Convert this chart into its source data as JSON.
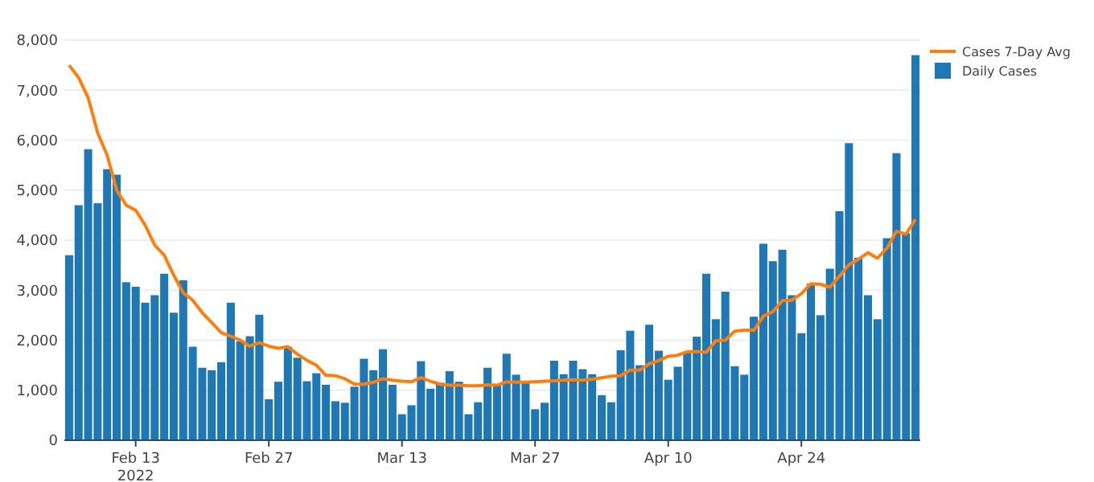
{
  "chart_data": {
    "type": "bar",
    "x": [
      "2022-02-06",
      "2022-02-07",
      "2022-02-08",
      "2022-02-09",
      "2022-02-10",
      "2022-02-11",
      "2022-02-12",
      "2022-02-13",
      "2022-02-14",
      "2022-02-15",
      "2022-02-16",
      "2022-02-17",
      "2022-02-18",
      "2022-02-19",
      "2022-02-20",
      "2022-02-21",
      "2022-02-22",
      "2022-02-23",
      "2022-02-24",
      "2022-02-25",
      "2022-02-26",
      "2022-02-27",
      "2022-02-28",
      "2022-03-01",
      "2022-03-02",
      "2022-03-03",
      "2022-03-04",
      "2022-03-05",
      "2022-03-06",
      "2022-03-07",
      "2022-03-08",
      "2022-03-09",
      "2022-03-10",
      "2022-03-11",
      "2022-03-12",
      "2022-03-13",
      "2022-03-14",
      "2022-03-15",
      "2022-03-16",
      "2022-03-17",
      "2022-03-18",
      "2022-03-19",
      "2022-03-20",
      "2022-03-21",
      "2022-03-22",
      "2022-03-23",
      "2022-03-24",
      "2022-03-25",
      "2022-03-26",
      "2022-03-27",
      "2022-03-28",
      "2022-03-29",
      "2022-03-30",
      "2022-03-31",
      "2022-04-01",
      "2022-04-02",
      "2022-04-03",
      "2022-04-04",
      "2022-04-05",
      "2022-04-06",
      "2022-04-07",
      "2022-04-08",
      "2022-04-09",
      "2022-04-10",
      "2022-04-11",
      "2022-04-12",
      "2022-04-13",
      "2022-04-14",
      "2022-04-15",
      "2022-04-16",
      "2022-04-17",
      "2022-04-18",
      "2022-04-19",
      "2022-04-20",
      "2022-04-21",
      "2022-04-22",
      "2022-04-23",
      "2022-04-24",
      "2022-04-25",
      "2022-04-26",
      "2022-04-27",
      "2022-04-28",
      "2022-04-29",
      "2022-04-30",
      "2022-05-01",
      "2022-05-02",
      "2022-05-03",
      "2022-05-04",
      "2022-05-05",
      "2022-05-06"
    ],
    "series": [
      {
        "name": "Cases 7-Day Avg",
        "type": "line",
        "color": "#ff7f0e",
        "values": [
          7500,
          7250,
          6850,
          6150,
          5700,
          5000,
          4700,
          4600,
          4300,
          3900,
          3700,
          3300,
          2950,
          2800,
          2550,
          2350,
          2150,
          2080,
          2000,
          1880,
          1950,
          1880,
          1840,
          1870,
          1720,
          1600,
          1500,
          1300,
          1290,
          1230,
          1120,
          1120,
          1160,
          1230,
          1200,
          1180,
          1170,
          1250,
          1180,
          1120,
          1100,
          1100,
          1090,
          1090,
          1110,
          1100,
          1170,
          1160,
          1160,
          1170,
          1180,
          1190,
          1200,
          1210,
          1200,
          1220,
          1250,
          1280,
          1290,
          1400,
          1400,
          1530,
          1590,
          1680,
          1700,
          1770,
          1770,
          1760,
          1990,
          2000,
          2180,
          2200,
          2200,
          2480,
          2570,
          2790,
          2800,
          2930,
          3130,
          3120,
          3060,
          3280,
          3510,
          3620,
          3750,
          3640,
          3840,
          4180,
          4120,
          4420
        ]
      },
      {
        "name": "Daily Cases",
        "color": "#1f77b4",
        "values": [
          3700,
          4700,
          5820,
          4740,
          5420,
          5310,
          3160,
          3070,
          2750,
          2900,
          3330,
          2550,
          3200,
          1870,
          1450,
          1400,
          1560,
          2750,
          1980,
          2080,
          2510,
          820,
          1170,
          1870,
          1650,
          1180,
          1340,
          1110,
          780,
          750,
          1070,
          1630,
          1400,
          1820,
          1110,
          520,
          700,
          1580,
          1030,
          1150,
          1380,
          1170,
          520,
          760,
          1450,
          1120,
          1730,
          1310,
          1150,
          620,
          750,
          1590,
          1320,
          1590,
          1420,
          1320,
          900,
          760,
          1800,
          2190,
          1500,
          2310,
          1790,
          1210,
          1470,
          1750,
          2070,
          3330,
          2420,
          2970,
          1480,
          1310,
          2470,
          3930,
          3580,
          3810,
          2900,
          2140,
          3130,
          2500,
          3430,
          4580,
          5940,
          3650,
          2900,
          2420,
          4040,
          5740,
          4140,
          7700
        ]
      }
    ],
    "xlim": [
      "2022-02-05T12:00",
      "2022-05-06T12:00"
    ],
    "xticks": [
      {
        "value": "2022-02-13",
        "label": "Feb 13\n2022"
      },
      {
        "value": "2022-02-27",
        "label": "Feb 27"
      },
      {
        "value": "2022-03-13",
        "label": "Mar 13"
      },
      {
        "value": "2022-03-27",
        "label": "Mar 27"
      },
      {
        "value": "2022-04-10",
        "label": "Apr 10"
      },
      {
        "value": "2022-04-24",
        "label": "Apr 24"
      }
    ],
    "ylim": [
      0,
      8000
    ],
    "yticks": [
      {
        "value": 0,
        "label": "0"
      },
      {
        "value": 1000,
        "label": "1,000"
      },
      {
        "value": 2000,
        "label": "2,000"
      },
      {
        "value": 3000,
        "label": "3,000"
      },
      {
        "value": 4000,
        "label": "4,000"
      },
      {
        "value": 5000,
        "label": "5,000"
      },
      {
        "value": 6000,
        "label": "6,000"
      },
      {
        "value": 7000,
        "label": "7,000"
      },
      {
        "value": 8000,
        "label": "8,000"
      }
    ],
    "grid": "y",
    "legend": "top right",
    "marker": "none",
    "line_style": "solid"
  }
}
